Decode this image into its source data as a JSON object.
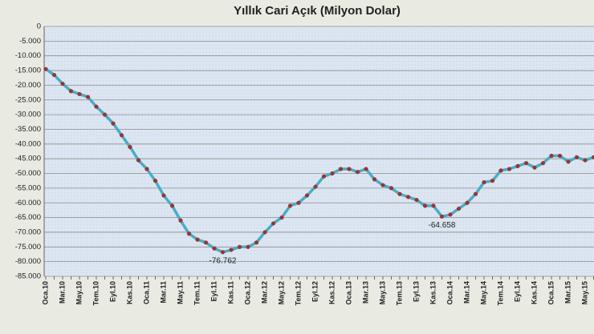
{
  "chart_data": {
    "type": "line",
    "title": "Yıllık Cari Açık (Milyon Dolar)",
    "categories": [
      "Oca.10",
      null,
      "Mar.10",
      null,
      "May.10",
      null,
      "Tem.10",
      null,
      "Eyl.10",
      null,
      "Kas.10",
      null,
      "Oca.11",
      null,
      "Mar.11",
      null,
      "May.11",
      null,
      "Tem.11",
      null,
      "Eyl.11",
      null,
      "Kas.11",
      null,
      "Oca.12",
      null,
      "Mar.12",
      null,
      "May.12",
      null,
      "Tem.12",
      null,
      "Eyl.12",
      null,
      "Kas.12",
      null,
      "Oca.13",
      null,
      "Mar.13",
      null,
      "May.13",
      null,
      "Tem.13",
      null,
      "Eyl.13",
      null,
      "Kas.13",
      null,
      "Oca.14",
      null,
      "Mar.14",
      null,
      "May.14",
      null,
      "Tem.14",
      null,
      "Eyl.14",
      null,
      "Kas.14",
      null,
      "Oca.15",
      null,
      "Mar.15",
      null,
      "May.15",
      null
    ],
    "series": [
      {
        "color": "#4bacc6",
        "marker_color": "#953735",
        "values": [
          -14500,
          -16500,
          -19500,
          -22000,
          -23000,
          -24000,
          -27300,
          -30000,
          -33000,
          -37000,
          -41000,
          -45500,
          -48500,
          -52500,
          -57500,
          -61000,
          -66000,
          -70500,
          -72500,
          -73500,
          -75500,
          -76762,
          -76000,
          -75000,
          -75000,
          -73500,
          -70000,
          -67000,
          -65000,
          -61000,
          -60000,
          -57500,
          -54500,
          -51000,
          -50000,
          -48500,
          -48500,
          -49500,
          -48500,
          -52000,
          -54000,
          -55000,
          -57000,
          -58000,
          -59000,
          -61000,
          -61000,
          -64658,
          -64000,
          -62000,
          -60000,
          -57000,
          -53000,
          -52500,
          -49000,
          -48500,
          -47500,
          -46500,
          -48000,
          -46500,
          -44000,
          -44000,
          -46000,
          -44500,
          -45500,
          -44500
        ],
        "value_labels": [
          null,
          null,
          null,
          null,
          null,
          null,
          null,
          null,
          null,
          null,
          null,
          null,
          null,
          null,
          null,
          null,
          null,
          null,
          null,
          null,
          null,
          "-76.762",
          null,
          null,
          null,
          null,
          null,
          null,
          null,
          null,
          null,
          null,
          null,
          null,
          null,
          null,
          null,
          null,
          null,
          null,
          null,
          null,
          null,
          null,
          null,
          null,
          null,
          "-64.658",
          null,
          null,
          null,
          null,
          null,
          null,
          null,
          null,
          null,
          null,
          null,
          null,
          null,
          null,
          null,
          null,
          null,
          null
        ]
      }
    ],
    "ylim": [
      -85000,
      0
    ],
    "yticks": [
      0,
      {
        "value": -5000,
        "label": "-5.000"
      },
      {
        "value": -10000,
        "label": "-10.000"
      },
      {
        "value": -15000,
        "label": "-15.000"
      },
      {
        "value": -20000,
        "label": "-20.000"
      },
      {
        "value": -25000,
        "label": "-25.000"
      },
      {
        "value": -30000,
        "label": "-30.000"
      },
      {
        "value": -35000,
        "label": "-35.000"
      },
      {
        "value": -40000,
        "label": "-40.000"
      },
      {
        "value": -45000,
        "label": "-45.000"
      },
      {
        "value": -50000,
        "label": "-50.000"
      },
      {
        "value": -55000,
        "label": "-55.000"
      },
      {
        "value": -60000,
        "label": "-60.000"
      },
      {
        "value": -65000,
        "label": "-65.000"
      },
      {
        "value": -70000,
        "label": "-70.000"
      },
      {
        "value": -75000,
        "label": "-75.000"
      },
      {
        "value": -80000,
        "label": "-80.000"
      },
      {
        "value": -85000,
        "label": "-85.000"
      }
    ],
    "grid": true
  }
}
